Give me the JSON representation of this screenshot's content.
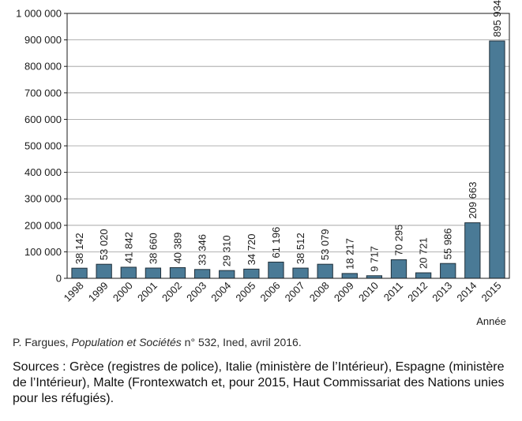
{
  "chart_data": {
    "type": "bar",
    "categories": [
      "1998",
      "1999",
      "2000",
      "2001",
      "2002",
      "2003",
      "2004",
      "2005",
      "2006",
      "2007",
      "2008",
      "2009",
      "2010",
      "2011",
      "2012",
      "2013",
      "2014",
      "2015"
    ],
    "values": [
      38142,
      53020,
      41842,
      38660,
      40389,
      33346,
      29310,
      34720,
      61196,
      38512,
      53079,
      18217,
      9717,
      70295,
      20721,
      55986,
      209663,
      895934
    ],
    "value_labels": [
      "38 142",
      "53 020",
      "41 842",
      "38 660",
      "40 389",
      "33 346",
      "29 310",
      "34 720",
      "61 196",
      "38 512",
      "53 079",
      "18 217",
      "9 717",
      "70 295",
      "20 721",
      "55 986",
      "209 663",
      "895 934"
    ],
    "y_ticks": [
      0,
      100000,
      200000,
      300000,
      400000,
      500000,
      600000,
      700000,
      800000,
      900000,
      1000000
    ],
    "y_tick_labels": [
      "0",
      "100 000",
      "200 000",
      "300 000",
      "400 000",
      "500 000",
      "600 000",
      "700 000",
      "800 000",
      "900 000",
      "1 000 000"
    ],
    "ylim": [
      0,
      1000000
    ],
    "xlabel": "Année",
    "ylabel": "",
    "title": "",
    "grid": true,
    "bar_color": "#4a7a96",
    "bar_stroke": "#1f2f3a"
  },
  "caption": {
    "author": "P. Fargues, ",
    "journal": "Population et Sociétés",
    "rest": " n° 532, Ined, avril 2016."
  },
  "sources": "Sources : Grèce (registres de police), Italie (ministère de l’Intérieur), Espagne (ministère de l’Intérieur), Malte (Frontexwatch et, pour 2015, Haut Commissariat des Nations unies pour les réfugiés)."
}
